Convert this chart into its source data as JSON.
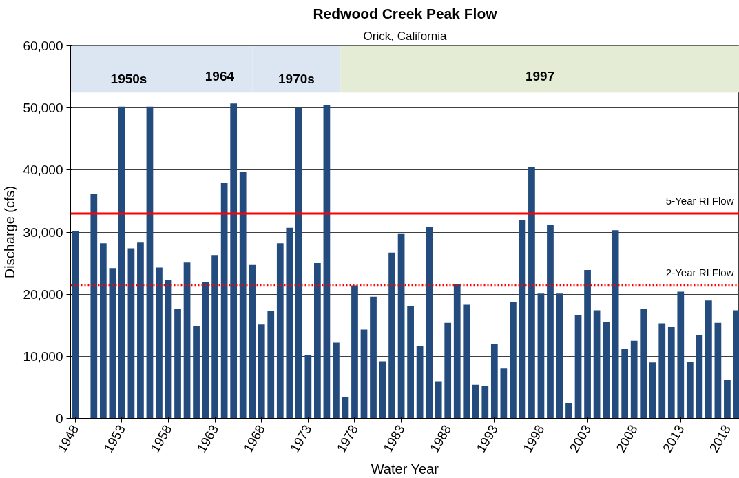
{
  "chart_data": {
    "type": "bar",
    "title": "Redwood Creek Peak Flow",
    "subtitle": "Orick, California",
    "xlabel": "Water Year",
    "ylabel": "Discharge (cfs)",
    "x": [
      1948,
      1949,
      1950,
      1951,
      1952,
      1953,
      1954,
      1955,
      1956,
      1957,
      1958,
      1959,
      1960,
      1961,
      1962,
      1963,
      1964,
      1965,
      1966,
      1967,
      1968,
      1969,
      1970,
      1971,
      1972,
      1973,
      1974,
      1975,
      1976,
      1977,
      1978,
      1979,
      1980,
      1981,
      1982,
      1983,
      1984,
      1985,
      1986,
      1987,
      1988,
      1989,
      1990,
      1991,
      1992,
      1993,
      1994,
      1995,
      1996,
      1997,
      1998,
      1999,
      2000,
      2001,
      2002,
      2003,
      2004,
      2005,
      2006,
      2007,
      2008,
      2009,
      2010,
      2011,
      2012,
      2013,
      2014,
      2015,
      2016,
      2017,
      2018,
      2019
    ],
    "values": [
      30200,
      null,
      36200,
      28200,
      24200,
      50200,
      27400,
      28300,
      50200,
      24300,
      22300,
      17700,
      25100,
      14800,
      21900,
      26300,
      37900,
      50700,
      39700,
      24700,
      15100,
      17300,
      28200,
      30700,
      50000,
      10200,
      25000,
      50400,
      12200,
      3400,
      21400,
      14300,
      19600,
      9200,
      26700,
      29700,
      18100,
      11600,
      30800,
      6000,
      15400,
      21600,
      18300,
      5400,
      5200,
      12000,
      8000,
      18700,
      32000,
      40500,
      20100,
      31100,
      20100,
      2500,
      16700,
      23900,
      17400,
      15500,
      30300,
      11200,
      12500,
      17700,
      9000,
      15300,
      14700,
      20400,
      9100,
      13400,
      19000,
      15400,
      6200,
      17400
    ],
    "color": "#234b7d",
    "xlim": [
      1947.5,
      2019.3
    ],
    "xticks": [
      1948,
      1953,
      1958,
      1963,
      1968,
      1973,
      1978,
      1983,
      1988,
      1993,
      1998,
      2003,
      2008,
      2013,
      2018
    ],
    "ylim": [
      0,
      60000
    ],
    "yticks": [
      {
        "value": 0,
        "label": "0"
      },
      {
        "value": 10000,
        "label": "10,000"
      },
      {
        "value": 20000,
        "label": "20,000"
      },
      {
        "value": 30000,
        "label": "30,000"
      },
      {
        "value": 40000,
        "label": "40,000"
      },
      {
        "value": 50000,
        "label": "50,000"
      },
      {
        "value": 60000,
        "label": "60,000"
      }
    ],
    "grid": "y",
    "ref_lines": [
      {
        "axis": "y",
        "value": 33000,
        "label": "5-Year RI Flow",
        "color": "#ff0000",
        "line_style": "solid"
      },
      {
        "axis": "y",
        "value": 21500,
        "label": "2-Year RI Flow",
        "color": "#ff0000",
        "line_style": "dotted"
      }
    ],
    "bands": [
      {
        "axis": "x",
        "from": 1947.5,
        "to": 1960,
        "label": "1950s",
        "color": "#dce6f2"
      },
      {
        "axis": "x",
        "from": 1960,
        "to": 1967,
        "label": "1964",
        "color": "#dce6f2"
      },
      {
        "axis": "x",
        "from": 1967,
        "to": 1976.5,
        "label": "1970s",
        "color": "#dce6f2"
      },
      {
        "axis": "x",
        "from": 1976.5,
        "to": 2019.3,
        "label": "1997",
        "color": "#e4ecd6"
      }
    ]
  }
}
